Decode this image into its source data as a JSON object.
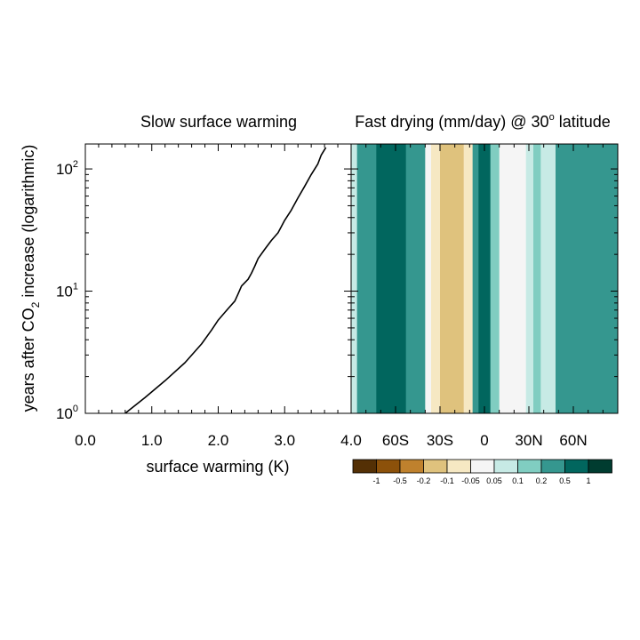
{
  "chart_data": [
    {
      "type": "line",
      "title": "Slow surface warming",
      "xlabel": "surface warming (K)",
      "ylabel_parts": [
        "years after CO",
        "2",
        " increase (logarithmic)"
      ],
      "x_ticks": [
        "0.0",
        "1.0",
        "2.0",
        "3.0",
        "4.0"
      ],
      "xlim": [
        0,
        4
      ],
      "y_scale": "log",
      "ylim": [
        1,
        160
      ],
      "y_ticks": [
        {
          "value": 1,
          "base": "10",
          "exp": "0"
        },
        {
          "value": 10,
          "base": "10",
          "exp": "1"
        },
        {
          "value": 100,
          "base": "10",
          "exp": "2"
        }
      ],
      "series": [
        {
          "x": [
            0.6,
            0.9,
            1.2,
            1.5,
            1.75,
            1.9,
            2.0,
            2.15,
            2.25,
            2.3,
            2.35,
            2.45,
            2.5,
            2.55,
            2.6,
            2.7,
            2.8,
            2.9,
            3.0,
            3.1,
            3.2,
            3.3,
            3.4,
            3.5,
            3.55,
            3.62
          ],
          "y": [
            1.0,
            1.35,
            1.85,
            2.6,
            3.7,
            4.8,
            5.8,
            7.2,
            8.3,
            9.5,
            11.0,
            12.5,
            14.0,
            16.0,
            18.5,
            22.0,
            26.0,
            30.0,
            38.0,
            46.0,
            58.0,
            72.0,
            90.0,
            110.0,
            130.0,
            150.0
          ]
        }
      ]
    },
    {
      "type": "heatmap",
      "title_parts": [
        "Fast drying (mm/day) @ 30",
        "o",
        " latitude"
      ],
      "x_ticks": [
        "60S",
        "30S",
        "0",
        "30N",
        "60N"
      ],
      "x_tick_values": [
        -60,
        -30,
        0,
        30,
        60
      ],
      "xlim": [
        -90,
        90
      ],
      "y_scale": "log",
      "ylim": [
        1,
        160
      ],
      "zones": [
        {
          "lat": [
            -90,
            -86
          ],
          "value": 0.05,
          "color": "#c7eae5"
        },
        {
          "lat": [
            -86,
            -73
          ],
          "value": 0.3,
          "color": "#35978f"
        },
        {
          "lat": [
            -73,
            -53
          ],
          "value": 0.7,
          "color": "#01665e"
        },
        {
          "lat": [
            -53,
            -40
          ],
          "value": 0.3,
          "color": "#35978f"
        },
        {
          "lat": [
            -40,
            -36
          ],
          "value": 0.02,
          "color": "#f5f5f5"
        },
        {
          "lat": [
            -36,
            -30
          ],
          "value": -0.1,
          "color": "#f6e8c3"
        },
        {
          "lat": [
            -30,
            -14
          ],
          "value": -0.15,
          "color": "#dfc27d"
        },
        {
          "lat": [
            -14,
            -8
          ],
          "value": -0.08,
          "color": "#f6e8c3"
        },
        {
          "lat": [
            -8,
            -4
          ],
          "value": 0.3,
          "color": "#35978f"
        },
        {
          "lat": [
            -4,
            4
          ],
          "value": 0.7,
          "color": "#01665e"
        },
        {
          "lat": [
            4,
            10
          ],
          "value": 0.15,
          "color": "#80cdc1"
        },
        {
          "lat": [
            10,
            16
          ],
          "value": 0.02,
          "color": "#f5f5f5"
        },
        {
          "lat": [
            16,
            28
          ],
          "value": -0.03,
          "color": "#f5f5f5"
        },
        {
          "lat": [
            28,
            33
          ],
          "value": 0.08,
          "color": "#c7eae5"
        },
        {
          "lat": [
            33,
            38
          ],
          "value": 0.15,
          "color": "#80cdc1"
        },
        {
          "lat": [
            38,
            48
          ],
          "value": 0.1,
          "color": "#c7eae5"
        },
        {
          "lat": [
            48,
            90
          ],
          "value": 0.3,
          "color": "#35978f"
        }
      ],
      "colorbar": {
        "colors": [
          "#543005",
          "#8c510a",
          "#bf812d",
          "#dfc27d",
          "#f6e8c3",
          "#f5f5f5",
          "#c7eae5",
          "#80cdc1",
          "#35978f",
          "#01665e",
          "#003c30"
        ],
        "labels": [
          "-1",
          "-0.5",
          "-0.2",
          "-0.1",
          "-0.05",
          "0.05",
          "0.1",
          "0.2",
          "0.5",
          "1"
        ]
      }
    }
  ]
}
